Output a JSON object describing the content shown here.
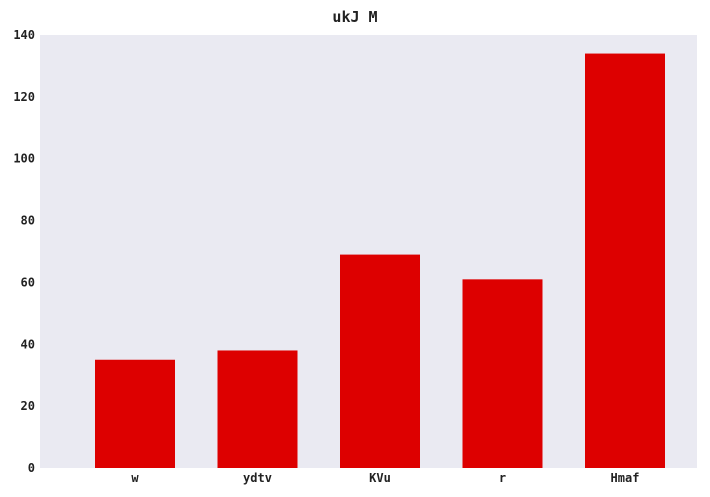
{
  "chart_data": {
    "type": "bar",
    "title": "ukJ M",
    "xlabel": "",
    "ylabel": "",
    "categories": [
      "w",
      "ydtv",
      "KVu",
      "r",
      "Hmaf"
    ],
    "values": [
      35,
      38,
      69,
      61,
      134
    ],
    "ylim": [
      0,
      140
    ],
    "yticks": [
      0,
      20,
      40,
      60,
      80,
      100,
      120,
      140
    ],
    "bar_color": "#dd0000",
    "plot_background": "#eaeaf2",
    "grid": false,
    "legend": "none"
  }
}
